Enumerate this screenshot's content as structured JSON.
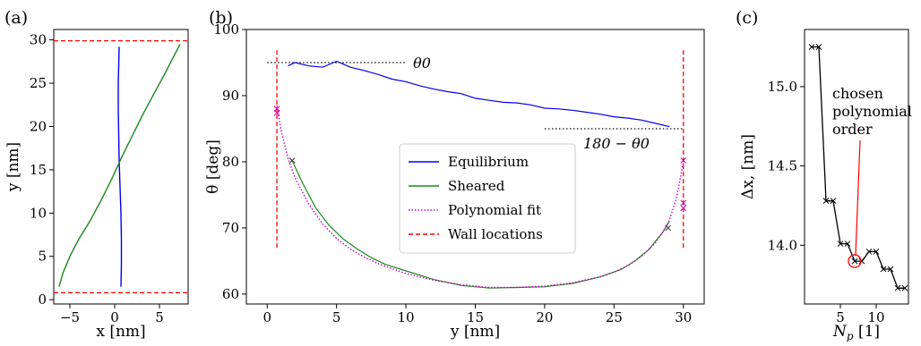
{
  "panels": [
    {
      "label": "(a)",
      "chart_data": {
        "type": "line",
        "xlabel": "x [nm]",
        "ylabel": "y [nm]",
        "xlim": [
          -6.8,
          8.2
        ],
        "ylim": [
          -0.5,
          31.2
        ],
        "xticks": [
          -5,
          0,
          5
        ],
        "yticks": [
          0,
          5,
          10,
          15,
          20,
          25,
          30
        ],
        "series": [
          {
            "style": "blue",
            "x": [
              0.7,
              0.75,
              0.75,
              0.7,
              0.6,
              0.5,
              0.45,
              0.4,
              0.4,
              0.45,
              0.5
            ],
            "y": [
              1.5,
              4,
              7,
              10,
              13,
              16,
              19,
              22,
              25,
              27,
              29.2
            ]
          },
          {
            "style": "green",
            "x": [
              -6.2,
              -5.8,
              -5.0,
              -4.0,
              -2.8,
              -1.5,
              -0.3,
              0.8,
              2.0,
              3.2,
              4.5,
              5.7,
              6.8,
              7.3
            ],
            "y": [
              1.5,
              3,
              5,
              7,
              9,
              11.5,
              14,
              16.5,
              19,
              21.5,
              24,
              26.3,
              28.5,
              29.5
            ]
          }
        ],
        "hlines": [
          0.8,
          29.9
        ],
        "hline_color": "#ff0000"
      }
    },
    {
      "label": "(b)",
      "chart_data": {
        "type": "line",
        "xlabel": "y [nm]",
        "ylabel": "θ [deg]",
        "xlim": [
          -1.5,
          31.5
        ],
        "ylim": [
          58.5,
          100
        ],
        "xticks": [
          0,
          5,
          10,
          15,
          20,
          25,
          30
        ],
        "yticks": [
          60,
          70,
          80,
          90,
          100
        ],
        "legend": {
          "position": "center",
          "entries": [
            "Equilibrium",
            "Sheared",
            "Polynomial fit",
            "Wall locations"
          ]
        },
        "series": [
          {
            "name": "Equilibrium",
            "x": [
              1.5,
              2,
              3,
              4,
              5,
              6,
              7,
              8,
              9,
              10,
              11,
              12,
              13,
              14,
              15,
              16,
              17,
              18,
              19,
              20,
              21,
              22,
              23,
              24,
              25,
              26,
              27,
              28,
              29
            ],
            "y": [
              94.5,
              95,
              94.5,
              94.3,
              95.2,
              94.3,
              93.8,
              93.2,
              92.5,
              92.1,
              91.5,
              91.0,
              90.6,
              90.3,
              89.6,
              89.3,
              89.0,
              88.9,
              88.6,
              88.1,
              88.0,
              87.8,
              87.5,
              87.2,
              86.8,
              86.6,
              86.3,
              85.8,
              85.3
            ]
          },
          {
            "name": "Sheared",
            "x": [
              1.8,
              2.5,
              3.5,
              4.5,
              5.5,
              6.5,
              7.5,
              8.5,
              10,
              12,
              14,
              16,
              18,
              20,
              22,
              24,
              25.5,
              26.5,
              27.5,
              28.5,
              29
            ],
            "y": [
              80.2,
              77,
              73,
              70.3,
              68.3,
              66.8,
              65.5,
              64.5,
              63.5,
              62.2,
              61.3,
              60.9,
              61.0,
              61.1,
              61.6,
              62.6,
              63.7,
              65.0,
              66.7,
              69.3,
              71.0
            ]
          },
          {
            "name": "Polynomial fit",
            "x": [
              0.7,
              1.0,
              1.5,
              2,
              3,
              4,
              5,
              6,
              7,
              8,
              10,
              12,
              14,
              16,
              18,
              20,
              22,
              24,
              25,
              26,
              27,
              28,
              28.5,
              29,
              29.5,
              30
            ],
            "y": [
              88.5,
              84.8,
              80.5,
              77.6,
              73.6,
              70.6,
              68.4,
              66.8,
              65.6,
              64.6,
              63.1,
              62.1,
              61.4,
              61.0,
              61.0,
              61.2,
              61.7,
              62.6,
              63.3,
              64.3,
              65.7,
              67.8,
              69.3,
              71.2,
              74.5,
              80.0
            ]
          },
          {
            "name": "Wall locations",
            "x": [
              0.7,
              30.0
            ],
            "y_range": [
              67,
              97
            ]
          }
        ],
        "markers": {
          "color": "#cc00aa",
          "points": [
            [
              0.7,
              88.0
            ],
            [
              0.7,
              87.4
            ],
            [
              30,
              80.2
            ],
            [
              30,
              73.8
            ],
            [
              30,
              73.0
            ]
          ]
        },
        "reference_lines": [
          {
            "label": "θ0",
            "x": [
              0,
              10
            ],
            "y": 95
          },
          {
            "label": "180 − θ0",
            "x": [
              20,
              30
            ],
            "y": 85
          }
        ]
      }
    },
    {
      "label": "(c)",
      "chart_data": {
        "type": "line",
        "xlabel": "Np [1]",
        "ylabel": "Δx, [nm]",
        "xlim": [
          0,
          14.5
        ],
        "ylim": [
          13.63,
          15.36
        ],
        "xticks": [
          5,
          10
        ],
        "yticks": [
          14.0,
          14.5,
          15.0
        ],
        "series": [
          {
            "style": "black",
            "x": [
              1,
              2,
              3,
              4,
              5,
              6,
              7,
              8,
              9,
              10,
              11,
              12,
              13,
              14
            ],
            "y": [
              15.25,
              15.25,
              14.28,
              14.28,
              14.01,
              14.01,
              13.9,
              13.9,
              13.96,
              13.96,
              13.85,
              13.85,
              13.73,
              13.73
            ]
          }
        ],
        "annotation": {
          "lines": [
            "chosen",
            "polynomial",
            "order"
          ],
          "target": [
            7,
            13.9
          ]
        }
      }
    }
  ]
}
